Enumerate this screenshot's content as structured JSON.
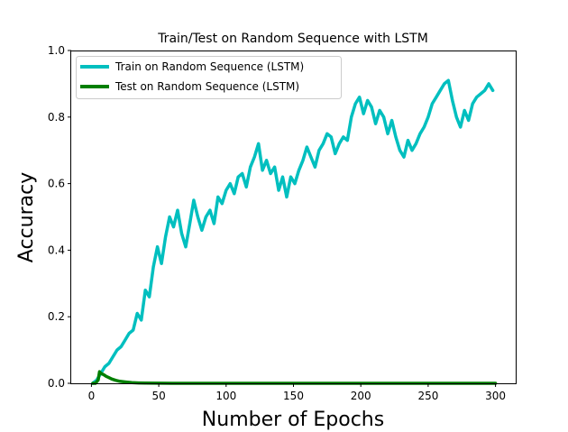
{
  "chart_data": {
    "type": "line",
    "title": "Train/Test on Random Sequence with LSTM",
    "xlabel": "Number of Epochs",
    "ylabel": "Accuracy",
    "xlim": [
      -15,
      315
    ],
    "ylim": [
      0.0,
      1.0
    ],
    "xticks": [
      0,
      50,
      100,
      150,
      200,
      250,
      300
    ],
    "yticks": [
      0.0,
      0.2,
      0.4,
      0.6,
      0.8,
      1.0
    ],
    "xtick_labels": [
      "0",
      "50",
      "100",
      "150",
      "200",
      "250",
      "300"
    ],
    "ytick_labels": [
      "0.0",
      "0.2",
      "0.4",
      "0.6",
      "0.8",
      "1.0"
    ],
    "grid": false,
    "legend_position": "top-left",
    "series": [
      {
        "name": "Train on Random Sequence (LSTM)",
        "color": "#00bfbf",
        "x": [
          1,
          4,
          7,
          10,
          13,
          16,
          19,
          22,
          25,
          28,
          31,
          34,
          37,
          40,
          43,
          46,
          49,
          52,
          55,
          58,
          61,
          64,
          67,
          70,
          73,
          76,
          79,
          82,
          85,
          88,
          91,
          94,
          97,
          100,
          103,
          106,
          109,
          112,
          115,
          118,
          121,
          124,
          127,
          130,
          133,
          136,
          139,
          142,
          145,
          148,
          151,
          154,
          157,
          160,
          163,
          166,
          169,
          172,
          175,
          178,
          181,
          184,
          187,
          190,
          193,
          196,
          199,
          202,
          205,
          208,
          211,
          214,
          217,
          220,
          223,
          226,
          229,
          232,
          235,
          238,
          241,
          244,
          247,
          250,
          253,
          256,
          259,
          262,
          265,
          268,
          271,
          274,
          277,
          280,
          283,
          286,
          289,
          292,
          295,
          298
        ],
        "y": [
          0.0,
          0.01,
          0.03,
          0.05,
          0.06,
          0.08,
          0.1,
          0.11,
          0.13,
          0.15,
          0.16,
          0.21,
          0.19,
          0.28,
          0.26,
          0.35,
          0.41,
          0.36,
          0.44,
          0.5,
          0.47,
          0.52,
          0.45,
          0.41,
          0.48,
          0.55,
          0.5,
          0.46,
          0.5,
          0.52,
          0.48,
          0.56,
          0.54,
          0.58,
          0.6,
          0.57,
          0.62,
          0.63,
          0.59,
          0.65,
          0.68,
          0.72,
          0.64,
          0.67,
          0.63,
          0.65,
          0.58,
          0.62,
          0.56,
          0.62,
          0.6,
          0.64,
          0.67,
          0.71,
          0.68,
          0.65,
          0.7,
          0.72,
          0.75,
          0.74,
          0.69,
          0.72,
          0.74,
          0.73,
          0.8,
          0.84,
          0.86,
          0.81,
          0.85,
          0.83,
          0.78,
          0.82,
          0.8,
          0.75,
          0.79,
          0.74,
          0.7,
          0.68,
          0.73,
          0.7,
          0.72,
          0.75,
          0.77,
          0.8,
          0.84,
          0.86,
          0.88,
          0.9,
          0.91,
          0.85,
          0.8,
          0.77,
          0.82,
          0.79,
          0.84,
          0.86,
          0.87,
          0.88,
          0.9,
          0.88
        ]
      },
      {
        "name": "Test on Random Sequence (LSTM)",
        "color": "#007f00",
        "x": [
          1,
          3,
          5,
          6,
          7,
          9,
          11,
          13,
          15,
          18,
          21,
          25,
          30,
          35,
          40,
          50,
          60,
          80,
          100,
          150,
          200,
          250,
          300
        ],
        "y": [
          0.0,
          0.0,
          0.01,
          0.035,
          0.03,
          0.026,
          0.021,
          0.017,
          0.013,
          0.009,
          0.006,
          0.004,
          0.002,
          0.001,
          0.0005,
          0.0002,
          0.0,
          0.0,
          0.0,
          0.0,
          0.0,
          0.0,
          0.0
        ]
      }
    ]
  }
}
